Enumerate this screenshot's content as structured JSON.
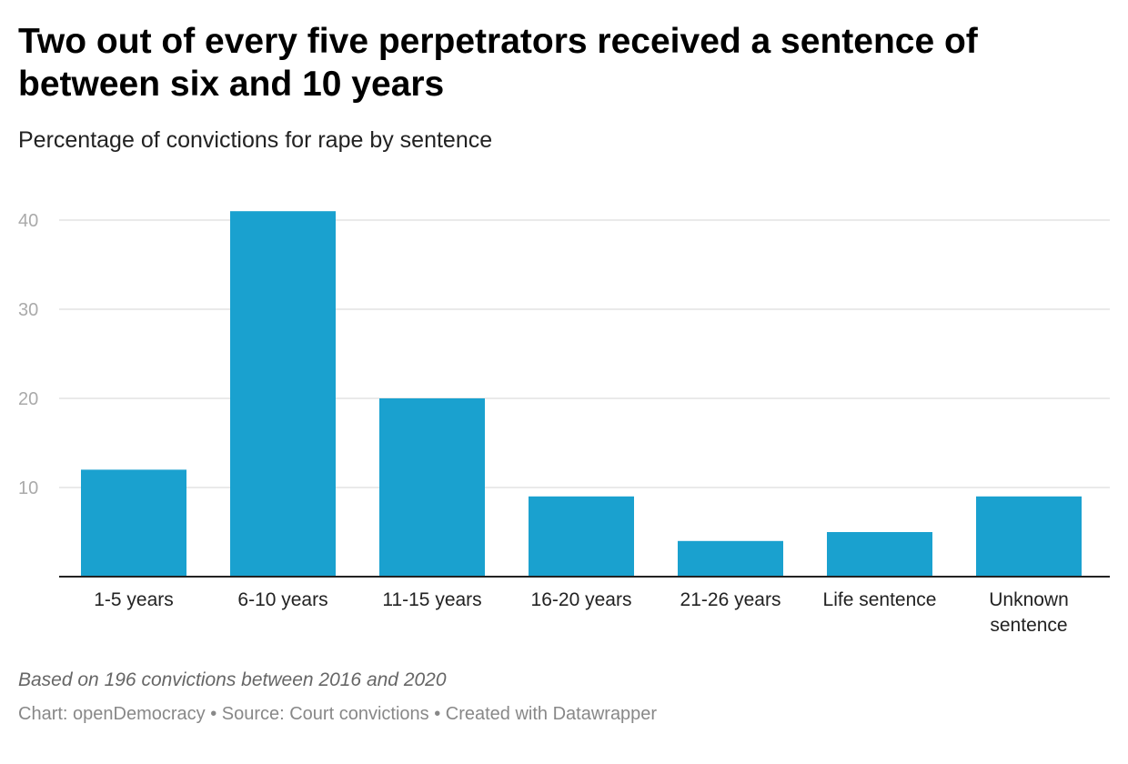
{
  "title": "Two out of every five perpetrators received a sentence of between six and 10 years",
  "subtitle": "Percentage of convictions for rape by sentence",
  "note": "Based on 196 convictions between 2016 and 2020",
  "footer": "Chart: openDemocracy • Source: Court convictions • Created with Datawrapper",
  "chart_data": {
    "type": "bar",
    "categories": [
      "1-5 years",
      "6-10 years",
      "11-15 years",
      "16-20 years",
      "21-26 years",
      "Life sentence",
      "Unknown sentence"
    ],
    "values": [
      12,
      41,
      20,
      9,
      4,
      5,
      9
    ],
    "ylim": [
      0,
      43
    ],
    "yticks": [
      10,
      20,
      30,
      40
    ],
    "grid": true,
    "bar_color": "#1aa1cf",
    "xlabel": "",
    "ylabel": ""
  }
}
